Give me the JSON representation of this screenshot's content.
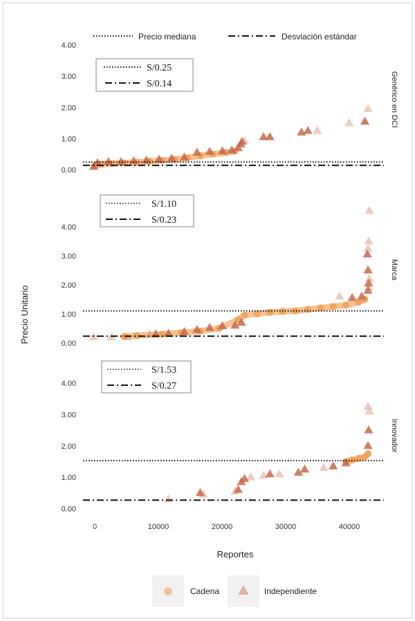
{
  "chart_data": {
    "type": "scatter",
    "xlabel": "Reportes",
    "ylabel": "Precio Unitario",
    "xlim": [
      -1500,
      46000
    ],
    "x_ticks": [
      "0",
      "10000",
      "20000",
      "30000",
      "40000"
    ],
    "y_ticks": [
      "0.00",
      "1.00",
      "2.00",
      "3.00",
      "4.00"
    ],
    "top_legend": {
      "median_label": "Precio mediana",
      "sd_label": "Desviación estándar"
    },
    "bottom_legend": {
      "cadena_label": "Cadena",
      "independiente_label": "Independiente"
    },
    "colors": {
      "cadena": "#ef9a4a",
      "independiente": "#c76a4c",
      "independiente_faded": "#e6bcae"
    },
    "panels": [
      {
        "strip": "Genérico en DCI",
        "ylim": [
          -0.1,
          4.2
        ],
        "median": 0.25,
        "sd": 0.14,
        "median_text": "S/0.25",
        "sd_text": "S/0.14",
        "cadena_points": [
          [
            300,
            0.12
          ],
          [
            1500,
            0.18
          ],
          [
            3000,
            0.2
          ],
          [
            5000,
            0.22
          ],
          [
            7000,
            0.24
          ],
          [
            9000,
            0.27
          ],
          [
            11000,
            0.3
          ],
          [
            13000,
            0.33
          ],
          [
            15000,
            0.38
          ],
          [
            17000,
            0.45
          ],
          [
            19000,
            0.5
          ],
          [
            21000,
            0.55
          ],
          [
            22500,
            0.6
          ]
        ],
        "independiente_points": [
          [
            200,
            0.1
          ],
          [
            800,
            0.22
          ],
          [
            2500,
            0.25
          ],
          [
            4500,
            0.25
          ],
          [
            6500,
            0.28
          ],
          [
            8500,
            0.3
          ],
          [
            10500,
            0.33
          ],
          [
            12500,
            0.36
          ],
          [
            14500,
            0.4
          ],
          [
            16500,
            0.55
          ],
          [
            18500,
            0.58
          ],
          [
            20500,
            0.6
          ],
          [
            22000,
            0.62
          ],
          [
            23000,
            0.7
          ],
          [
            23400,
            0.82
          ],
          [
            23600,
            0.9
          ],
          [
            27000,
            1.05
          ],
          [
            28000,
            1.05
          ],
          [
            33000,
            1.2
          ],
          [
            34000,
            1.25
          ],
          [
            43000,
            1.55
          ]
        ],
        "independiente_faded_points": [
          [
            24000,
            0.92
          ],
          [
            35500,
            1.25
          ],
          [
            40500,
            1.5
          ],
          [
            43500,
            1.95
          ]
        ]
      },
      {
        "strip": "Marca",
        "ylim": [
          -0.1,
          4.9
        ],
        "median": 1.1,
        "sd": 0.23,
        "median_text": "S/1.10",
        "sd_text": "S/0.23",
        "cadena_points": [
          [
            5000,
            0.22
          ],
          [
            7000,
            0.25
          ],
          [
            11000,
            0.3
          ],
          [
            14000,
            0.35
          ],
          [
            17000,
            0.4
          ],
          [
            20000,
            0.5
          ],
          [
            23000,
            0.8
          ],
          [
            24000,
            0.95
          ],
          [
            26000,
            1.0
          ],
          [
            28000,
            1.05
          ],
          [
            30000,
            1.08
          ],
          [
            32000,
            1.1
          ],
          [
            34000,
            1.15
          ],
          [
            36000,
            1.2
          ],
          [
            38000,
            1.25
          ],
          [
            40000,
            1.3
          ],
          [
            42000,
            1.4
          ],
          [
            43000,
            1.5
          ]
        ],
        "independiente_points": [
          [
            10000,
            0.3
          ],
          [
            12000,
            0.32
          ],
          [
            14500,
            0.38
          ],
          [
            16500,
            0.45
          ],
          [
            18500,
            0.52
          ],
          [
            20500,
            0.58
          ],
          [
            22500,
            0.6
          ],
          [
            23500,
            0.7
          ],
          [
            41000,
            1.55
          ],
          [
            42500,
            1.6
          ],
          [
            43500,
            1.8
          ],
          [
            43600,
            2.05
          ],
          [
            43500,
            2.5
          ],
          [
            43400,
            3.05
          ]
        ],
        "independiente_faded_points": [
          [
            200,
            0.2
          ],
          [
            3000,
            0.2
          ],
          [
            5500,
            0.2
          ],
          [
            9000,
            0.3
          ],
          [
            43600,
            1.9
          ],
          [
            43700,
            2.2
          ],
          [
            43500,
            3.25
          ],
          [
            43600,
            3.5
          ],
          [
            43700,
            4.55
          ],
          [
            39000,
            1.6
          ]
        ]
      },
      {
        "strip": "Innovador",
        "ylim": [
          -0.1,
          4.2
        ],
        "median": 1.53,
        "sd": 0.27,
        "median_text": "S/1.53",
        "sd_text": "S/0.27",
        "cadena_points": [
          [
            40000,
            1.5
          ],
          [
            41000,
            1.55
          ],
          [
            42000,
            1.6
          ],
          [
            43000,
            1.65
          ],
          [
            43500,
            1.75
          ]
        ],
        "independiente_points": [
          [
            17000,
            0.5
          ],
          [
            23000,
            0.6
          ],
          [
            23500,
            0.85
          ],
          [
            24000,
            0.95
          ],
          [
            28000,
            1.1
          ],
          [
            32500,
            1.15
          ],
          [
            33500,
            1.25
          ],
          [
            38000,
            1.35
          ],
          [
            40000,
            1.45
          ],
          [
            43500,
            2.0
          ],
          [
            43600,
            2.5
          ]
        ],
        "independiente_faded_points": [
          [
            12000,
            0.3
          ],
          [
            17500,
            0.45
          ],
          [
            22500,
            0.55
          ],
          [
            25000,
            1.0
          ],
          [
            27000,
            1.05
          ],
          [
            29500,
            1.1
          ],
          [
            36500,
            1.3
          ],
          [
            43700,
            3.1
          ],
          [
            43500,
            3.25
          ]
        ]
      }
    ]
  }
}
